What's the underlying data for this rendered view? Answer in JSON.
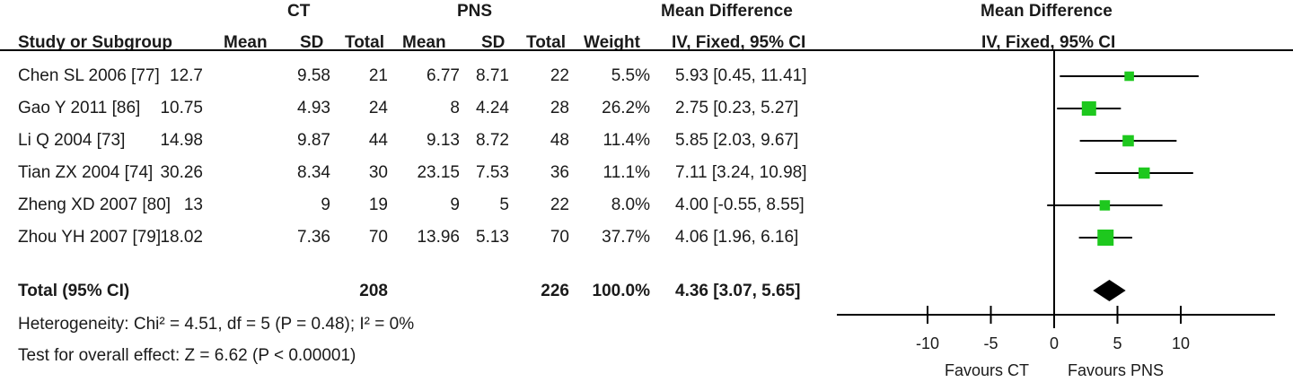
{
  "header": {
    "group1": "CT",
    "group2": "PNS",
    "md_left": "Mean Difference",
    "md_right": "Mean Difference",
    "columns": {
      "study": "Study or Subgroup",
      "mean1": "Mean",
      "sd1": "SD",
      "total1": "Total",
      "mean2": "Mean",
      "sd2": "SD",
      "total2": "Total",
      "weight": "Weight",
      "ci": "IV, Fixed, 95% CI",
      "plot_method": "IV, Fixed, 95% CI"
    }
  },
  "studies": [
    {
      "name": "Chen SL 2006 [77]",
      "mean1": "12.7",
      "sd1": "9.58",
      "n1": "21",
      "mean2": "6.77",
      "sd2": "8.71",
      "n2": "22",
      "weight": "5.5%",
      "ci_text": "5.93 [0.45, 11.41]"
    },
    {
      "name": "Gao Y 2011 [86]",
      "mean1": "10.75",
      "sd1": "4.93",
      "n1": "24",
      "mean2": "8",
      "sd2": "4.24",
      "n2": "28",
      "weight": "26.2%",
      "ci_text": "2.75 [0.23, 5.27]"
    },
    {
      "name": "Li Q 2004 [73]",
      "mean1": "14.98",
      "sd1": "9.87",
      "n1": "44",
      "mean2": "9.13",
      "sd2": "8.72",
      "n2": "48",
      "weight": "11.4%",
      "ci_text": "5.85 [2.03, 9.67]"
    },
    {
      "name": "Tian ZX 2004 [74]",
      "mean1": "30.26",
      "sd1": "8.34",
      "n1": "30",
      "mean2": "23.15",
      "sd2": "7.53",
      "n2": "36",
      "weight": "11.1%",
      "ci_text": "7.11 [3.24, 10.98]"
    },
    {
      "name": "Zheng XD 2007 [80]",
      "mean1": "13",
      "sd1": "9",
      "n1": "19",
      "mean2": "9",
      "sd2": "5",
      "n2": "22",
      "weight": "8.0%",
      "ci_text": "4.00 [-0.55, 8.55]"
    },
    {
      "name": "Zhou YH 2007 [79]",
      "mean1": "18.02",
      "sd1": "7.36",
      "n1": "70",
      "mean2": "13.96",
      "sd2": "5.13",
      "n2": "70",
      "weight": "37.7%",
      "ci_text": "4.06 [1.96, 6.16]"
    }
  ],
  "total": {
    "label": "Total (95% CI)",
    "n1": "208",
    "n2": "226",
    "weight": "100.0%",
    "ci_text": "4.36 [3.07, 5.65]"
  },
  "heterogeneity": "Heterogeneity: Chi² = 4.51, df = 5 (P = 0.48); I² = 0%",
  "overall_effect": "Test for overall effect: Z = 6.62 (P < 0.00001)",
  "axis": {
    "favours_left": "Favours CT",
    "favours_right": "Favours PNS"
  },
  "chart_data": {
    "type": "forest",
    "x_range": [
      -10,
      10
    ],
    "ticks": [
      -10,
      -5,
      0,
      5,
      10
    ],
    "tick_labels": [
      "-10",
      "-5",
      "0",
      "5",
      "10"
    ],
    "square_color": "#1ec81e",
    "studies": [
      {
        "est": 5.93,
        "lo": 0.45,
        "hi": 11.41,
        "weight": 5.5
      },
      {
        "est": 2.75,
        "lo": 0.23,
        "hi": 5.27,
        "weight": 26.2
      },
      {
        "est": 5.85,
        "lo": 2.03,
        "hi": 9.67,
        "weight": 11.4
      },
      {
        "est": 7.11,
        "lo": 3.24,
        "hi": 10.98,
        "weight": 11.1
      },
      {
        "est": 4.0,
        "lo": -0.55,
        "hi": 8.55,
        "weight": 8.0
      },
      {
        "est": 4.06,
        "lo": 1.96,
        "hi": 6.16,
        "weight": 37.7
      }
    ],
    "pooled": {
      "est": 4.36,
      "lo": 3.07,
      "hi": 5.65
    }
  }
}
